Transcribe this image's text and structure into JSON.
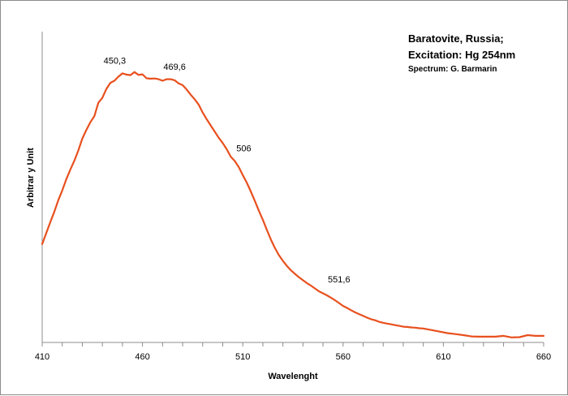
{
  "chart_data": {
    "type": "line",
    "title_lines": [
      "Baratovite, Russia;",
      "Excitation:  Hg 254nm"
    ],
    "subtitle": "Spectrum: G. Barmarin",
    "xlabel": "Wavelenght",
    "ylabel": "Arbitrar y Unit",
    "xlim": [
      410,
      660
    ],
    "ylim": [
      0,
      100
    ],
    "x_ticks": [
      410,
      460,
      510,
      560,
      610,
      660
    ],
    "grid": false,
    "legend": "none",
    "series": [
      {
        "color": "#e8501e",
        "x": [
          410,
          412,
          414,
          416,
          418,
          420,
          422,
          424,
          426,
          428,
          430,
          432,
          434,
          436,
          438,
          440,
          442,
          444,
          446,
          448,
          450,
          452,
          454,
          456,
          458,
          460,
          462,
          464,
          466,
          468,
          470,
          472,
          474,
          476,
          478,
          480,
          482,
          484,
          486,
          488,
          490,
          492,
          494,
          496,
          498,
          500,
          502,
          504,
          506,
          508,
          510,
          512,
          514,
          516,
          518,
          520,
          522,
          524,
          526,
          528,
          530,
          532,
          534,
          536,
          538,
          540,
          542,
          544,
          546,
          548,
          550,
          552,
          554,
          556,
          558,
          560,
          562,
          564,
          566,
          568,
          570,
          572,
          574,
          576,
          578,
          580,
          582,
          584,
          586,
          588,
          590,
          592,
          594,
          596,
          598,
          600,
          604,
          608,
          612,
          616,
          620,
          624,
          628,
          632,
          636,
          640,
          644,
          648,
          652,
          656,
          660
        ],
        "y": [
          35.5,
          39.7,
          44.0,
          48.0,
          52.6,
          56.4,
          60.8,
          64.5,
          68.0,
          72.0,
          76.6,
          80.0,
          83.0,
          85.4,
          90.6,
          92.6,
          96.0,
          98.4,
          99.2,
          100.8,
          102.1,
          101.6,
          101.4,
          102.6,
          101.5,
          101.7,
          100.2,
          100.0,
          100.1,
          99.8,
          99.2,
          99.8,
          99.8,
          99.4,
          98.2,
          97.5,
          95.8,
          93.8,
          92.0,
          89.9,
          86.8,
          84.2,
          81.8,
          79.4,
          77.0,
          74.9,
          72.5,
          69.6,
          67.9,
          65.5,
          62.4,
          59.5,
          56.0,
          52.4,
          48.5,
          45.0,
          41.0,
          37.3,
          34.0,
          31.2,
          29.0,
          27.0,
          25.3,
          23.9,
          22.6,
          21.4,
          20.3,
          19.3,
          18.2,
          17.1,
          16.3,
          15.5,
          14.6,
          13.6,
          12.5,
          11.4,
          10.6,
          9.7,
          8.9,
          8.2,
          7.5,
          6.8,
          6.2,
          5.8,
          5.2,
          4.8,
          4.5,
          4.2,
          3.9,
          3.6,
          3.3,
          3.2,
          3.0,
          2.9,
          2.7,
          2.6,
          2.0,
          1.4,
          0.8,
          0.4,
          0.0,
          -0.5,
          -0.6,
          -0.6,
          -0.6,
          -0.3,
          -0.9,
          -0.8,
          0.0,
          -0.3,
          -0.3
        ]
      }
    ],
    "annotations": [
      {
        "text": "450,3",
        "x": 450.3,
        "y": 102.1
      },
      {
        "text": "469,6",
        "x": 469.6,
        "y": 100.0
      },
      {
        "text": "506",
        "x": 506,
        "y": 67.9
      },
      {
        "text": "551,6",
        "x": 551.6,
        "y": 15.5
      }
    ]
  }
}
